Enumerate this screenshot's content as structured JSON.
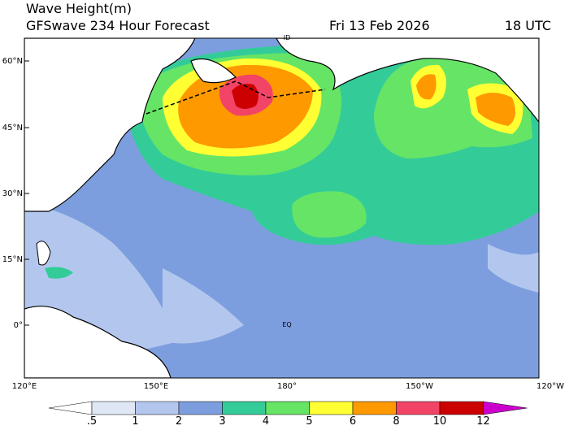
{
  "header": {
    "title": "Wave Height(m)",
    "subtitle": "GFSwave 234 Hour Forecast",
    "date": "Fri 13 Feb 2026",
    "time": "18 UTC"
  },
  "lat_labels": [
    "60°N",
    "45°N",
    "30°N",
    "15°N",
    "0°"
  ],
  "lon_labels": [
    "120°E",
    "150°E",
    "180°",
    "150°W",
    "120°W"
  ],
  "annotations": {
    "equator": "EQ",
    "dateline": "ID"
  },
  "legend": {
    "labels": [
      ".5",
      "1",
      "2",
      "3",
      "4",
      "5",
      "6",
      "8",
      "10",
      "12"
    ],
    "colors": [
      "#ffffff",
      "#dfe7f5",
      "#b3c7ee",
      "#7d9ede",
      "#33cc99",
      "#66e466",
      "#ffff33",
      "#ff9900",
      "#f24466",
      "#cc0000",
      "#cc00cc"
    ]
  }
}
